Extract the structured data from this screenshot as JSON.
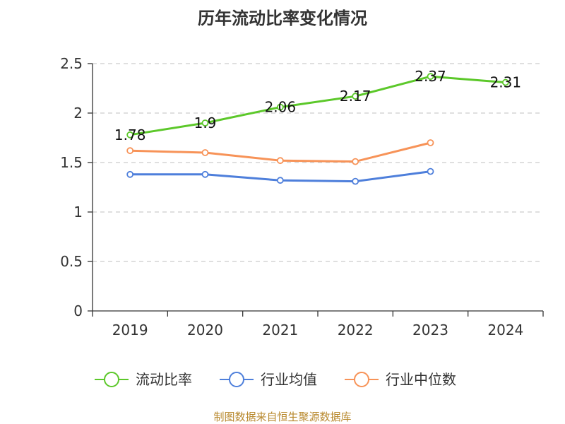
{
  "chart_data": {
    "type": "line",
    "title": "历年流动比率变化情况",
    "categories": [
      "2019",
      "2020",
      "2021",
      "2022",
      "2023",
      "2024"
    ],
    "ylim": [
      0,
      2.5
    ],
    "yticks": [
      "0",
      "0.5",
      "1",
      "1.5",
      "2",
      "2.5"
    ],
    "grid": true,
    "legend_position": "bottom",
    "series": [
      {
        "name": "流动比率",
        "color": "#5cc82a",
        "values": [
          1.78,
          1.9,
          2.06,
          2.17,
          2.37,
          2.31
        ],
        "labels": [
          "1.78",
          "1.9",
          "2.06",
          "2.17",
          "2.37",
          "2.31"
        ]
      },
      {
        "name": "行业均值",
        "color": "#4e7fdb",
        "values": [
          1.38,
          1.38,
          1.32,
          1.31,
          1.41,
          null
        ]
      },
      {
        "name": "行业中位数",
        "color": "#f79358",
        "values": [
          1.62,
          1.6,
          1.52,
          1.51,
          1.7,
          null
        ]
      }
    ]
  },
  "source": "制图数据来自恒生聚源数据库"
}
